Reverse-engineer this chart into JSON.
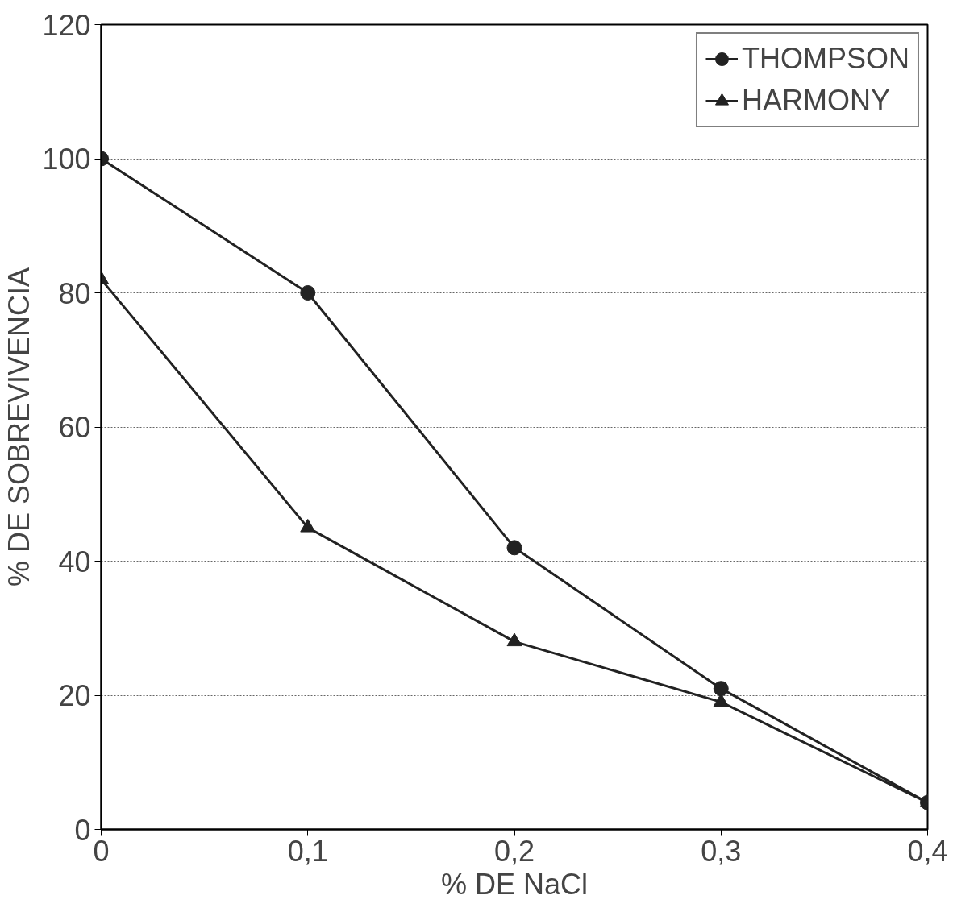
{
  "chart_data": {
    "type": "line",
    "xlabel": "% DE NaCl",
    "ylabel": "% DE SOBREVIVENCIA",
    "x": [
      0,
      0.1,
      0.2,
      0.3,
      0.4
    ],
    "series": [
      {
        "name": "THOMPSON",
        "color": "#222222",
        "marker": "circle",
        "values": [
          100,
          80,
          42,
          21,
          4
        ]
      },
      {
        "name": "HARMONY",
        "color": "#222222",
        "marker": "triangle",
        "values": [
          82,
          45,
          28,
          19,
          4
        ]
      }
    ],
    "xlim": [
      0,
      0.4
    ],
    "xticks": [
      0,
      {
        "value": 0.1,
        "label": "0,1"
      },
      {
        "value": 0.2,
        "label": "0,2"
      },
      {
        "value": 0.3,
        "label": "0,3"
      },
      {
        "value": 0.4,
        "label": "0,4"
      }
    ],
    "ylim": [
      0,
      120
    ],
    "yticks": [
      0,
      20,
      40,
      60,
      80,
      100,
      120
    ],
    "grid": "y",
    "legend": "top right",
    "line_style": "solid"
  }
}
